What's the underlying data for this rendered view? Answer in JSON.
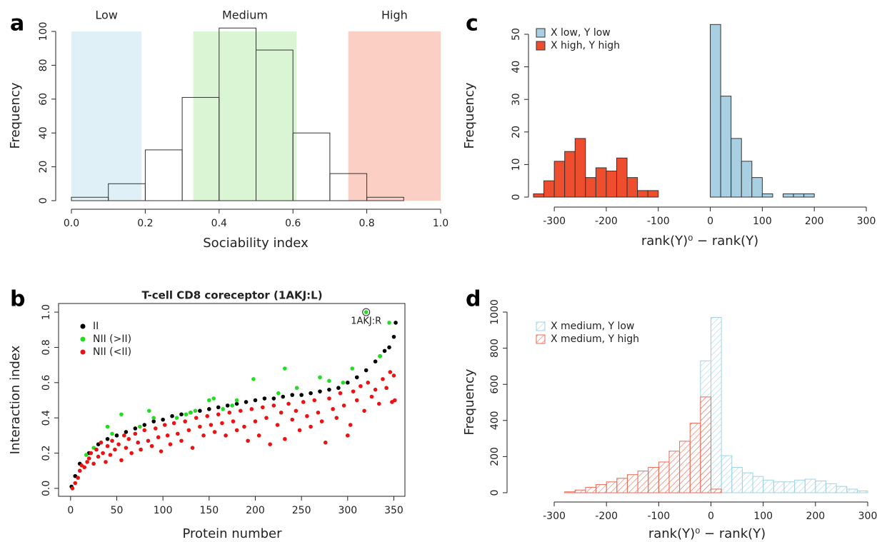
{
  "chart_data": [
    {
      "type": "histogram",
      "panel_label": "a",
      "xlabel": "Sociability index",
      "ylabel": "Frequency",
      "regions": [
        {
          "label": "Low",
          "from": 0,
          "to": 0.19,
          "color": "#dff0f7"
        },
        {
          "label": "Medium",
          "from": 0.33,
          "to": 0.61,
          "color": "#d9f5d3"
        },
        {
          "label": "High",
          "from": 0.75,
          "to": 1,
          "color": "#fbcfc4"
        }
      ],
      "series": [
        {
          "bins": [
            0,
            0.1,
            0.2,
            0.3,
            0.4,
            0.5,
            0.6,
            0.7,
            0.8,
            0.9
          ],
          "values": [
            2,
            10,
            30,
            61,
            102,
            89,
            40,
            16,
            2
          ],
          "color": "none"
        }
      ],
      "xlim": [
        0,
        1
      ],
      "ylim": [
        0,
        100
      ],
      "xticks": [
        {
          "value": 0,
          "label": "0.0"
        },
        0.2,
        0.4,
        0.6,
        0.8,
        {
          "value": 1,
          "label": "1.0"
        }
      ],
      "yticks": [
        0,
        20,
        40,
        60,
        80,
        100
      ]
    },
    {
      "type": "scatter",
      "panel_label": "b",
      "title": "T-cell CD8 coreceptor (1AKJ:L)",
      "xlabel": "Protein number",
      "ylabel": "Interaction index",
      "legend": "topleft",
      "series": [
        {
          "name": "II",
          "color": "#000000",
          "x": [
            1,
            5,
            10,
            20,
            30,
            40,
            50,
            60,
            70,
            80,
            90,
            100,
            110,
            120,
            130,
            140,
            150,
            160,
            170,
            180,
            190,
            200,
            210,
            220,
            230,
            240,
            250,
            260,
            270,
            280,
            290,
            300,
            310,
            320,
            330,
            335,
            340,
            345,
            350,
            352
          ],
          "values": [
            0.01,
            0.07,
            0.14,
            0.2,
            0.25,
            0.28,
            0.3,
            0.32,
            0.34,
            0.36,
            0.38,
            0.39,
            0.41,
            0.42,
            0.43,
            0.44,
            0.45,
            0.46,
            0.47,
            0.48,
            0.49,
            0.5,
            0.51,
            0.51,
            0.52,
            0.53,
            0.53,
            0.54,
            0.55,
            0.56,
            0.57,
            0.6,
            0.63,
            0.67,
            0.72,
            0.75,
            0.78,
            0.8,
            0.86,
            0.94
          ]
        },
        {
          "name": "NII (>II)",
          "color": "#22dd22",
          "x": [
            320,
            17,
            25,
            40,
            45,
            55,
            75,
            85,
            90,
            115,
            125,
            130,
            135,
            150,
            155,
            165,
            175,
            180,
            198,
            225,
            232,
            245,
            270,
            280,
            295,
            305,
            335,
            345
          ],
          "values": [
            1.0,
            0.19,
            0.23,
            0.35,
            0.31,
            0.42,
            0.35,
            0.44,
            0.4,
            0.4,
            0.42,
            0.43,
            0.44,
            0.5,
            0.51,
            0.45,
            0.47,
            0.5,
            0.62,
            0.54,
            0.68,
            0.57,
            0.63,
            0.61,
            0.6,
            0.68,
            0.75,
            0.94
          ]
        },
        {
          "name": "NII (<II)",
          "color": "#ee1111",
          "x": [
            2,
            5,
            8,
            10,
            12,
            15,
            18,
            20,
            22,
            25,
            28,
            30,
            33,
            35,
            38,
            40,
            43,
            45,
            48,
            52,
            55,
            58,
            60,
            63,
            66,
            70,
            73,
            76,
            80,
            84,
            88,
            92,
            95,
            98,
            102,
            105,
            108,
            112,
            116,
            120,
            124,
            128,
            132,
            136,
            140,
            144,
            148,
            152,
            156,
            160,
            164,
            168,
            172,
            176,
            180,
            184,
            188,
            192,
            196,
            200,
            204,
            208,
            212,
            216,
            220,
            224,
            228,
            232,
            236,
            240,
            244,
            248,
            252,
            256,
            260,
            264,
            268,
            272,
            276,
            280,
            284,
            288,
            292,
            296,
            300,
            303,
            306,
            310,
            314,
            318,
            322,
            326,
            330,
            334,
            338,
            342,
            346,
            348,
            350,
            351
          ],
          "values": [
            0.0,
            0.03,
            0.06,
            0.1,
            0.13,
            0.12,
            0.15,
            0.17,
            0.2,
            0.14,
            0.22,
            0.18,
            0.26,
            0.2,
            0.15,
            0.24,
            0.19,
            0.27,
            0.22,
            0.25,
            0.16,
            0.3,
            0.23,
            0.28,
            0.2,
            0.31,
            0.26,
            0.22,
            0.33,
            0.27,
            0.24,
            0.34,
            0.29,
            0.21,
            0.36,
            0.3,
            0.25,
            0.37,
            0.31,
            0.27,
            0.38,
            0.33,
            0.23,
            0.4,
            0.35,
            0.3,
            0.41,
            0.36,
            0.32,
            0.42,
            0.37,
            0.3,
            0.43,
            0.38,
            0.33,
            0.44,
            0.35,
            0.27,
            0.45,
            0.38,
            0.3,
            0.46,
            0.4,
            0.25,
            0.47,
            0.36,
            0.43,
            0.28,
            0.48,
            0.39,
            0.44,
            0.33,
            0.49,
            0.41,
            0.35,
            0.5,
            0.43,
            0.38,
            0.26,
            0.51,
            0.45,
            0.4,
            0.54,
            0.47,
            0.3,
            0.36,
            0.55,
            0.5,
            0.58,
            0.44,
            0.6,
            0.52,
            0.56,
            0.48,
            0.62,
            0.57,
            0.66,
            0.49,
            0.64,
            0.5
          ]
        }
      ],
      "annotations": [
        {
          "text": "1AKJ:R",
          "x": 320,
          "y": 1.0
        }
      ],
      "xlim": [
        -13,
        362
      ],
      "ylim": [
        -0.045,
        1.049
      ],
      "xticks": [
        0,
        50,
        100,
        150,
        200,
        250,
        300,
        350
      ],
      "yticks": [
        {
          "value": 0,
          "label": "0.0"
        },
        0.2,
        0.4,
        0.6,
        0.8,
        {
          "value": 1,
          "label": "1.0"
        }
      ]
    },
    {
      "type": "histogram",
      "panel_label": "c",
      "xlabel": "rank(Y)⁰ − rank(Y)",
      "ylabel": "Frequency",
      "legend": "topleft",
      "series": [
        {
          "name": "X low, Y low",
          "color": "#a9d0e2",
          "bins": [
            0,
            20,
            40,
            60,
            80,
            100,
            120,
            140,
            160,
            180,
            200
          ],
          "values": [
            53,
            31,
            18,
            11,
            6,
            1,
            0,
            1,
            1,
            1
          ]
        },
        {
          "name": "X high, Y high",
          "color": "#ee4e2e",
          "bins": [
            -340,
            -320,
            -300,
            -280,
            -260,
            -240,
            -220,
            -200,
            -180,
            -160,
            -140,
            -120,
            -100
          ],
          "values": [
            1,
            5,
            11,
            14,
            18,
            6,
            9,
            8,
            12,
            6,
            2,
            2
          ]
        }
      ],
      "xlim": [
        -340,
        300
      ],
      "ylim": [
        0,
        50
      ],
      "xticks": [
        -300,
        -200,
        -100,
        0,
        100,
        200,
        300
      ],
      "yticks": [
        0,
        10,
        20,
        30,
        40,
        50
      ]
    },
    {
      "type": "histogram",
      "panel_label": "d",
      "xlabel": "rank(Y)⁰ − rank(Y)",
      "ylabel": "Frequency",
      "legend": "topleft",
      "hatch": true,
      "series": [
        {
          "name": "X medium, Y low",
          "color": "#9fd3e3",
          "bins": [
            -20,
            0,
            20,
            40,
            60,
            80,
            100,
            120,
            140,
            160,
            180,
            200,
            220,
            240,
            260,
            280,
            300
          ],
          "values": [
            730,
            970,
            205,
            140,
            110,
            90,
            70,
            60,
            60,
            70,
            75,
            65,
            50,
            35,
            20,
            10
          ]
        },
        {
          "name": "X medium, Y high",
          "color": "#ea6a55",
          "bins": [
            -280,
            -260,
            -240,
            -220,
            -200,
            -180,
            -160,
            -140,
            -120,
            -100,
            -80,
            -60,
            -40,
            -20,
            0,
            20
          ],
          "values": [
            5,
            15,
            30,
            45,
            60,
            80,
            100,
            120,
            140,
            170,
            230,
            285,
            385,
            530,
            20
          ]
        }
      ],
      "xlim": [
        -300,
        300
      ],
      "ylim": [
        0,
        1000
      ],
      "xticks": [
        -300,
        -200,
        -100,
        0,
        100,
        200,
        300
      ],
      "yticks": [
        0,
        200,
        400,
        600,
        800,
        1000
      ]
    }
  ]
}
